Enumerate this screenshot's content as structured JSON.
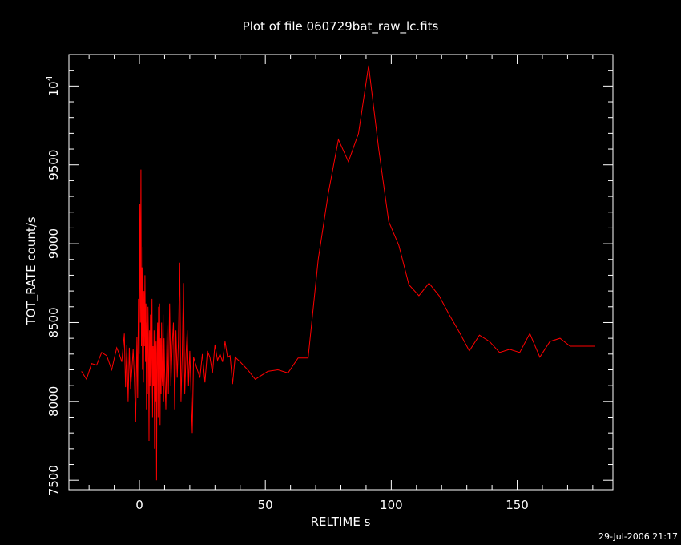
{
  "chart_data": {
    "type": "line",
    "title": "Plot of file 060729bat_raw_lc.fits",
    "xlabel": "RELTIME   s",
    "ylabel": "TOT_RATE   count/s",
    "xlim": [
      -28,
      188
    ],
    "ylim": [
      7440,
      10200
    ],
    "x_ticks": [
      0,
      50,
      100,
      150
    ],
    "x_tick_labels": [
      "0",
      "50",
      "100",
      "150"
    ],
    "y_ticks": [
      7500,
      8000,
      8500,
      9000,
      9500
    ],
    "y_tick_labels": [
      "7500",
      "8000",
      "8500",
      "9000",
      "9500"
    ],
    "y_extra_label": {
      "value": 10000,
      "base": "10",
      "exp": "4"
    },
    "grid": false,
    "series": [
      {
        "color": "#ff0000",
        "points": [
          [
            -23,
            8190
          ],
          [
            -21,
            8140
          ],
          [
            -19,
            8240
          ],
          [
            -17,
            8230
          ],
          [
            -15,
            8310
          ],
          [
            -13,
            8290
          ],
          [
            -11,
            8200
          ],
          [
            -9,
            8340
          ],
          [
            -8,
            8300
          ],
          [
            -7,
            8250
          ],
          [
            -6,
            8430
          ],
          [
            -5.5,
            8090
          ],
          [
            -5,
            8360
          ],
          [
            -4.5,
            8000
          ],
          [
            -4,
            8340
          ],
          [
            -3.5,
            8080
          ],
          [
            -3,
            8200
          ],
          [
            -2.5,
            8330
          ],
          [
            -2,
            8150
          ],
          [
            -1.5,
            7870
          ],
          [
            -1,
            8410
          ],
          [
            -0.7,
            8020
          ],
          [
            -0.4,
            8650
          ],
          [
            -0.1,
            8300
          ],
          [
            0.2,
            9250
          ],
          [
            0.4,
            8500
          ],
          [
            0.6,
            9470
          ],
          [
            0.8,
            8350
          ],
          [
            1,
            8850
          ],
          [
            1.2,
            8200
          ],
          [
            1.4,
            8980
          ],
          [
            1.6,
            8120
          ],
          [
            1.8,
            8700
          ],
          [
            2,
            8350
          ],
          [
            2.2,
            8800
          ],
          [
            2.4,
            8250
          ],
          [
            2.6,
            8620
          ],
          [
            2.8,
            7950
          ],
          [
            3,
            8500
          ],
          [
            3.2,
            8050
          ],
          [
            3.4,
            8600
          ],
          [
            3.6,
            8400
          ],
          [
            3.8,
            7750
          ],
          [
            4,
            8450
          ],
          [
            4.2,
            8100
          ],
          [
            4.4,
            8550
          ],
          [
            4.6,
            8000
          ],
          [
            4.8,
            8300
          ],
          [
            5,
            8650
          ],
          [
            5.2,
            7900
          ],
          [
            5.4,
            8350
          ],
          [
            5.6,
            8100
          ],
          [
            5.8,
            8450
          ],
          [
            6,
            7700
          ],
          [
            6.2,
            8550
          ],
          [
            6.4,
            8000
          ],
          [
            6.6,
            8380
          ],
          [
            6.8,
            7500
          ],
          [
            7,
            8300
          ],
          [
            7.2,
            8500
          ],
          [
            7.4,
            7900
          ],
          [
            7.6,
            8600
          ],
          [
            7.8,
            8200
          ],
          [
            8,
            8620
          ],
          [
            8.2,
            7850
          ],
          [
            8.4,
            8400
          ],
          [
            8.6,
            8050
          ],
          [
            8.8,
            8500
          ],
          [
            9,
            8150
          ],
          [
            9.2,
            8100
          ],
          [
            9.4,
            8550
          ],
          [
            9.6,
            8000
          ],
          [
            9.8,
            8400
          ],
          [
            10,
            8200
          ],
          [
            10.5,
            7950
          ],
          [
            11,
            8480
          ],
          [
            11.5,
            8050
          ],
          [
            12,
            8620
          ],
          [
            12.5,
            8100
          ],
          [
            13,
            8350
          ],
          [
            13.5,
            8500
          ],
          [
            14,
            7950
          ],
          [
            14.5,
            8450
          ],
          [
            15,
            8150
          ],
          [
            15.5,
            8380
          ],
          [
            16,
            8880
          ],
          [
            16.5,
            8000
          ],
          [
            17,
            8300
          ],
          [
            17.5,
            8750
          ],
          [
            18,
            8050
          ],
          [
            18.5,
            8300
          ],
          [
            19,
            8450
          ],
          [
            19.5,
            8100
          ],
          [
            20,
            8320
          ],
          [
            20.5,
            8050
          ],
          [
            21,
            7800
          ],
          [
            21.5,
            8280
          ],
          [
            23,
            8200
          ],
          [
            24,
            8150
          ],
          [
            25,
            8300
          ],
          [
            26,
            8120
          ],
          [
            27,
            8320
          ],
          [
            28,
            8280
          ],
          [
            29,
            8180
          ],
          [
            30,
            8360
          ],
          [
            31,
            8260
          ],
          [
            32,
            8300
          ],
          [
            33,
            8250
          ],
          [
            34,
            8380
          ],
          [
            35,
            8280
          ],
          [
            36,
            8290
          ],
          [
            37,
            8110
          ],
          [
            38,
            8280
          ],
          [
            40,
            8250
          ],
          [
            43,
            8200
          ],
          [
            46,
            8140
          ],
          [
            51,
            8190
          ],
          [
            55,
            8200
          ],
          [
            59,
            8180
          ],
          [
            63,
            8275
          ],
          [
            67,
            8275
          ],
          [
            71,
            8900
          ],
          [
            75,
            9320
          ],
          [
            79,
            9660
          ],
          [
            83,
            9520
          ],
          [
            87,
            9700
          ],
          [
            91,
            10130
          ],
          [
            95,
            9600
          ],
          [
            99,
            9140
          ],
          [
            103,
            8990
          ],
          [
            107,
            8740
          ],
          [
            111,
            8670
          ],
          [
            115,
            8750
          ],
          [
            119,
            8670
          ],
          [
            123,
            8550
          ],
          [
            127,
            8440
          ],
          [
            131,
            8320
          ],
          [
            135,
            8420
          ],
          [
            139,
            8380
          ],
          [
            143,
            8310
          ],
          [
            147,
            8330
          ],
          [
            151,
            8310
          ],
          [
            155,
            8430
          ],
          [
            159,
            8280
          ],
          [
            163,
            8380
          ],
          [
            167,
            8400
          ],
          [
            171,
            8350
          ],
          [
            175,
            8350
          ],
          [
            181,
            8350
          ]
        ]
      }
    ],
    "footer_text": "29-Jul-2006 21:17",
    "colors": {
      "background": "#000000",
      "axes": "#ffffff",
      "line": "#ff0000"
    }
  }
}
